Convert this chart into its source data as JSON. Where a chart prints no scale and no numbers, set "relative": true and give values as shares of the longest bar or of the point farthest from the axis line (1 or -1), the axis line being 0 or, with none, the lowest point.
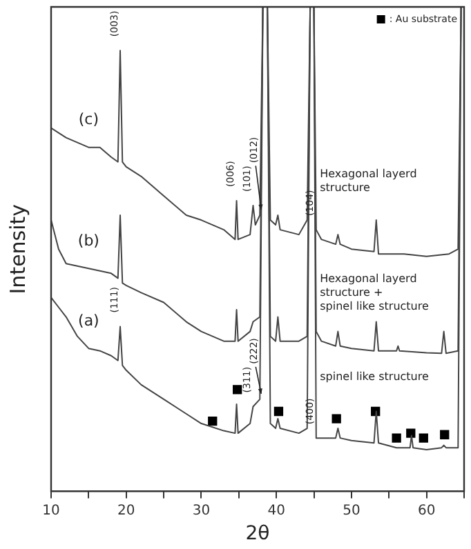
{
  "chart_data": {
    "type": "line",
    "relative": true,
    "xlabel": "2θ",
    "ylabel": "Intensity",
    "xlim": [
      10,
      65
    ],
    "xticks": [
      10,
      {
        "value": 15,
        "label": null
      },
      20,
      {
        "value": 25,
        "label": null
      },
      30,
      {
        "value": 35,
        "label": null
      },
      40,
      {
        "value": 45,
        "label": null
      },
      50,
      {
        "value": 55,
        "label": null
      },
      60,
      {
        "value": 65,
        "label": null
      }
    ],
    "tick_labels": "x",
    "grid": false,
    "legend": "top right",
    "marker": "none",
    "line_style": "solid",
    "series": [
      {
        "name": "(c)",
        "color": "#444444",
        "x": [
          10,
          11,
          12,
          13.5,
          15,
          16.5,
          18,
          18.9,
          19.2,
          19.5,
          20,
          22,
          25,
          28,
          30,
          33,
          34.5,
          34.7,
          34.9,
          36.5,
          36.9,
          37.2,
          37.8,
          38.2,
          38.8,
          39.2,
          39.9,
          40.2,
          40.5,
          43,
          44.1,
          44.5,
          45,
          45.3,
          46,
          47.9,
          48.2,
          48.5,
          50,
          53,
          53.3,
          53.6,
          55,
          57,
          60,
          63,
          64.2,
          64.6
        ],
        "values": [
          0.75,
          0.74,
          0.73,
          0.72,
          0.71,
          0.71,
          0.69,
          0.68,
          0.91,
          0.68,
          0.67,
          0.65,
          0.61,
          0.57,
          0.56,
          0.54,
          0.52,
          0.6,
          0.52,
          0.53,
          0.59,
          0.55,
          0.57,
          1,
          1,
          0.56,
          0.55,
          0.57,
          0.54,
          0.53,
          0.56,
          1,
          1,
          0.54,
          0.52,
          0.51,
          0.53,
          0.51,
          0.5,
          0.495,
          0.56,
          0.49,
          0.49,
          0.49,
          0.485,
          0.49,
          0.5,
          1
        ]
      },
      {
        "name": "(b)",
        "color": "#444444",
        "x": [
          10,
          11,
          12,
          15,
          18,
          18.9,
          19.2,
          19.5,
          20,
          22,
          25,
          28,
          30,
          33,
          34.5,
          34.7,
          34.9,
          36.5,
          36.9,
          37.8,
          38.2,
          38.8,
          39.2,
          39.9,
          40.2,
          40.5,
          43,
          44.1,
          44.5,
          45,
          45.3,
          46,
          47.9,
          48.2,
          48.5,
          50,
          53,
          53.3,
          53.6,
          56,
          56.2,
          56.4,
          60,
          62,
          62.3,
          62.6,
          64.2,
          64.6
        ],
        "values": [
          0.56,
          0.5,
          0.47,
          0.46,
          0.45,
          0.44,
          0.57,
          0.43,
          0.425,
          0.41,
          0.39,
          0.35,
          0.33,
          0.31,
          0.31,
          0.375,
          0.31,
          0.33,
          0.35,
          0.36,
          1,
          1,
          0.32,
          0.31,
          0.36,
          0.31,
          0.31,
          0.32,
          1,
          1,
          0.33,
          0.31,
          0.3,
          0.33,
          0.3,
          0.295,
          0.29,
          0.35,
          0.29,
          0.29,
          0.3,
          0.29,
          0.286,
          0.285,
          0.33,
          0.285,
          0.29,
          1
        ]
      },
      {
        "name": "(a)",
        "color": "#444444",
        "x": [
          10,
          11,
          12,
          13.5,
          15,
          16.5,
          18,
          18.9,
          19.2,
          19.5,
          20,
          22,
          25,
          28,
          30,
          33,
          34.5,
          34.7,
          34.9,
          36.5,
          36.9,
          37.8,
          38.2,
          38.8,
          39.2,
          39.9,
          40.2,
          40.5,
          43,
          44.1,
          44.5,
          45,
          45.3,
          47.9,
          48.2,
          48.5,
          50,
          53,
          53.3,
          53.6,
          56,
          57.8,
          58,
          58.2,
          60,
          62,
          62.3,
          62.6,
          64.2,
          64.6
        ],
        "values": [
          0.4,
          0.38,
          0.36,
          0.32,
          0.295,
          0.29,
          0.28,
          0.27,
          0.34,
          0.26,
          0.25,
          0.22,
          0.19,
          0.16,
          0.14,
          0.125,
          0.12,
          0.18,
          0.12,
          0.14,
          0.175,
          0.19,
          1,
          1,
          0.14,
          0.13,
          0.15,
          0.13,
          0.12,
          0.13,
          1,
          1,
          0.11,
          0.11,
          0.13,
          0.11,
          0.105,
          0.1,
          0.165,
          0.1,
          0.09,
          0.09,
          0.115,
          0.09,
          0.086,
          0.09,
          0.095,
          0.09,
          0.09,
          1
        ]
      },
      {
        "name": ": Au substrate",
        "type": "scatter",
        "marker": "square",
        "color": "#000000",
        "x": [
          31.5,
          34.8,
          40.3,
          48,
          53.2,
          56,
          57.9,
          59.6,
          62.4
        ],
        "values": [
          0.145,
          0.21,
          0.165,
          0.15,
          0.165,
          0.11,
          0.12,
          0.11,
          0.117
        ]
      }
    ],
    "annotations": [
      {
        "text": "(003)",
        "x": 19.2,
        "y": 0.91
      },
      {
        "text": "(006)",
        "x": 34.7,
        "y": 0.6
      },
      {
        "text": "(012)",
        "x": 37.8,
        "y": 0.57
      },
      {
        "text": "(101)",
        "x": 36.9,
        "y": 0.59
      },
      {
        "text": "(104)",
        "x": 45.3,
        "y": 0.54
      },
      {
        "text": "(111)",
        "x": 19.2,
        "y": 0.34
      },
      {
        "text": "(222)",
        "x": 37.8,
        "y": 0.19
      },
      {
        "text": "(311)",
        "x": 36.9,
        "y": 0.175
      },
      {
        "text": "(400)",
        "x": 45.3,
        "y": 0.11
      },
      {
        "text": "Hexagonal layerd\nstructure",
        "x": 45.8,
        "y": 0.64
      },
      {
        "text": "Hexagonal layerd\nstructure +\nspinel like structure",
        "x": 45.8,
        "y": 0.41
      },
      {
        "text": "spinel like structure",
        "x": 45.8,
        "y": 0.235
      }
    ]
  }
}
